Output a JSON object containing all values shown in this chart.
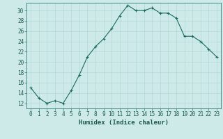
{
  "x": [
    0,
    1,
    2,
    3,
    4,
    5,
    6,
    7,
    8,
    9,
    10,
    11,
    12,
    13,
    14,
    15,
    16,
    17,
    18,
    19,
    20,
    21,
    22,
    23
  ],
  "y": [
    15,
    13,
    12,
    12.5,
    12,
    14.5,
    17.5,
    21,
    23,
    24.5,
    26.5,
    29,
    31,
    30,
    30,
    30.5,
    29.5,
    29.5,
    28.5,
    25,
    25,
    24,
    22.5,
    21
  ],
  "line_color": "#1a6b5a",
  "marker_color": "#1a6b5a",
  "bg_color": "#ceeae8",
  "grid_color": "#b0d8d5",
  "xlabel": "Humidex (Indice chaleur)",
  "xlim": [
    -0.5,
    23.5
  ],
  "ylim": [
    11,
    31.5
  ],
  "yticks": [
    12,
    14,
    16,
    18,
    20,
    22,
    24,
    26,
    28,
    30
  ],
  "xticks": [
    0,
    1,
    2,
    3,
    4,
    5,
    6,
    7,
    8,
    9,
    10,
    11,
    12,
    13,
    14,
    15,
    16,
    17,
    18,
    19,
    20,
    21,
    22,
    23
  ],
  "tick_fontsize": 5.5,
  "xlabel_fontsize": 6.5,
  "marker_size": 2.5,
  "line_width": 0.8
}
